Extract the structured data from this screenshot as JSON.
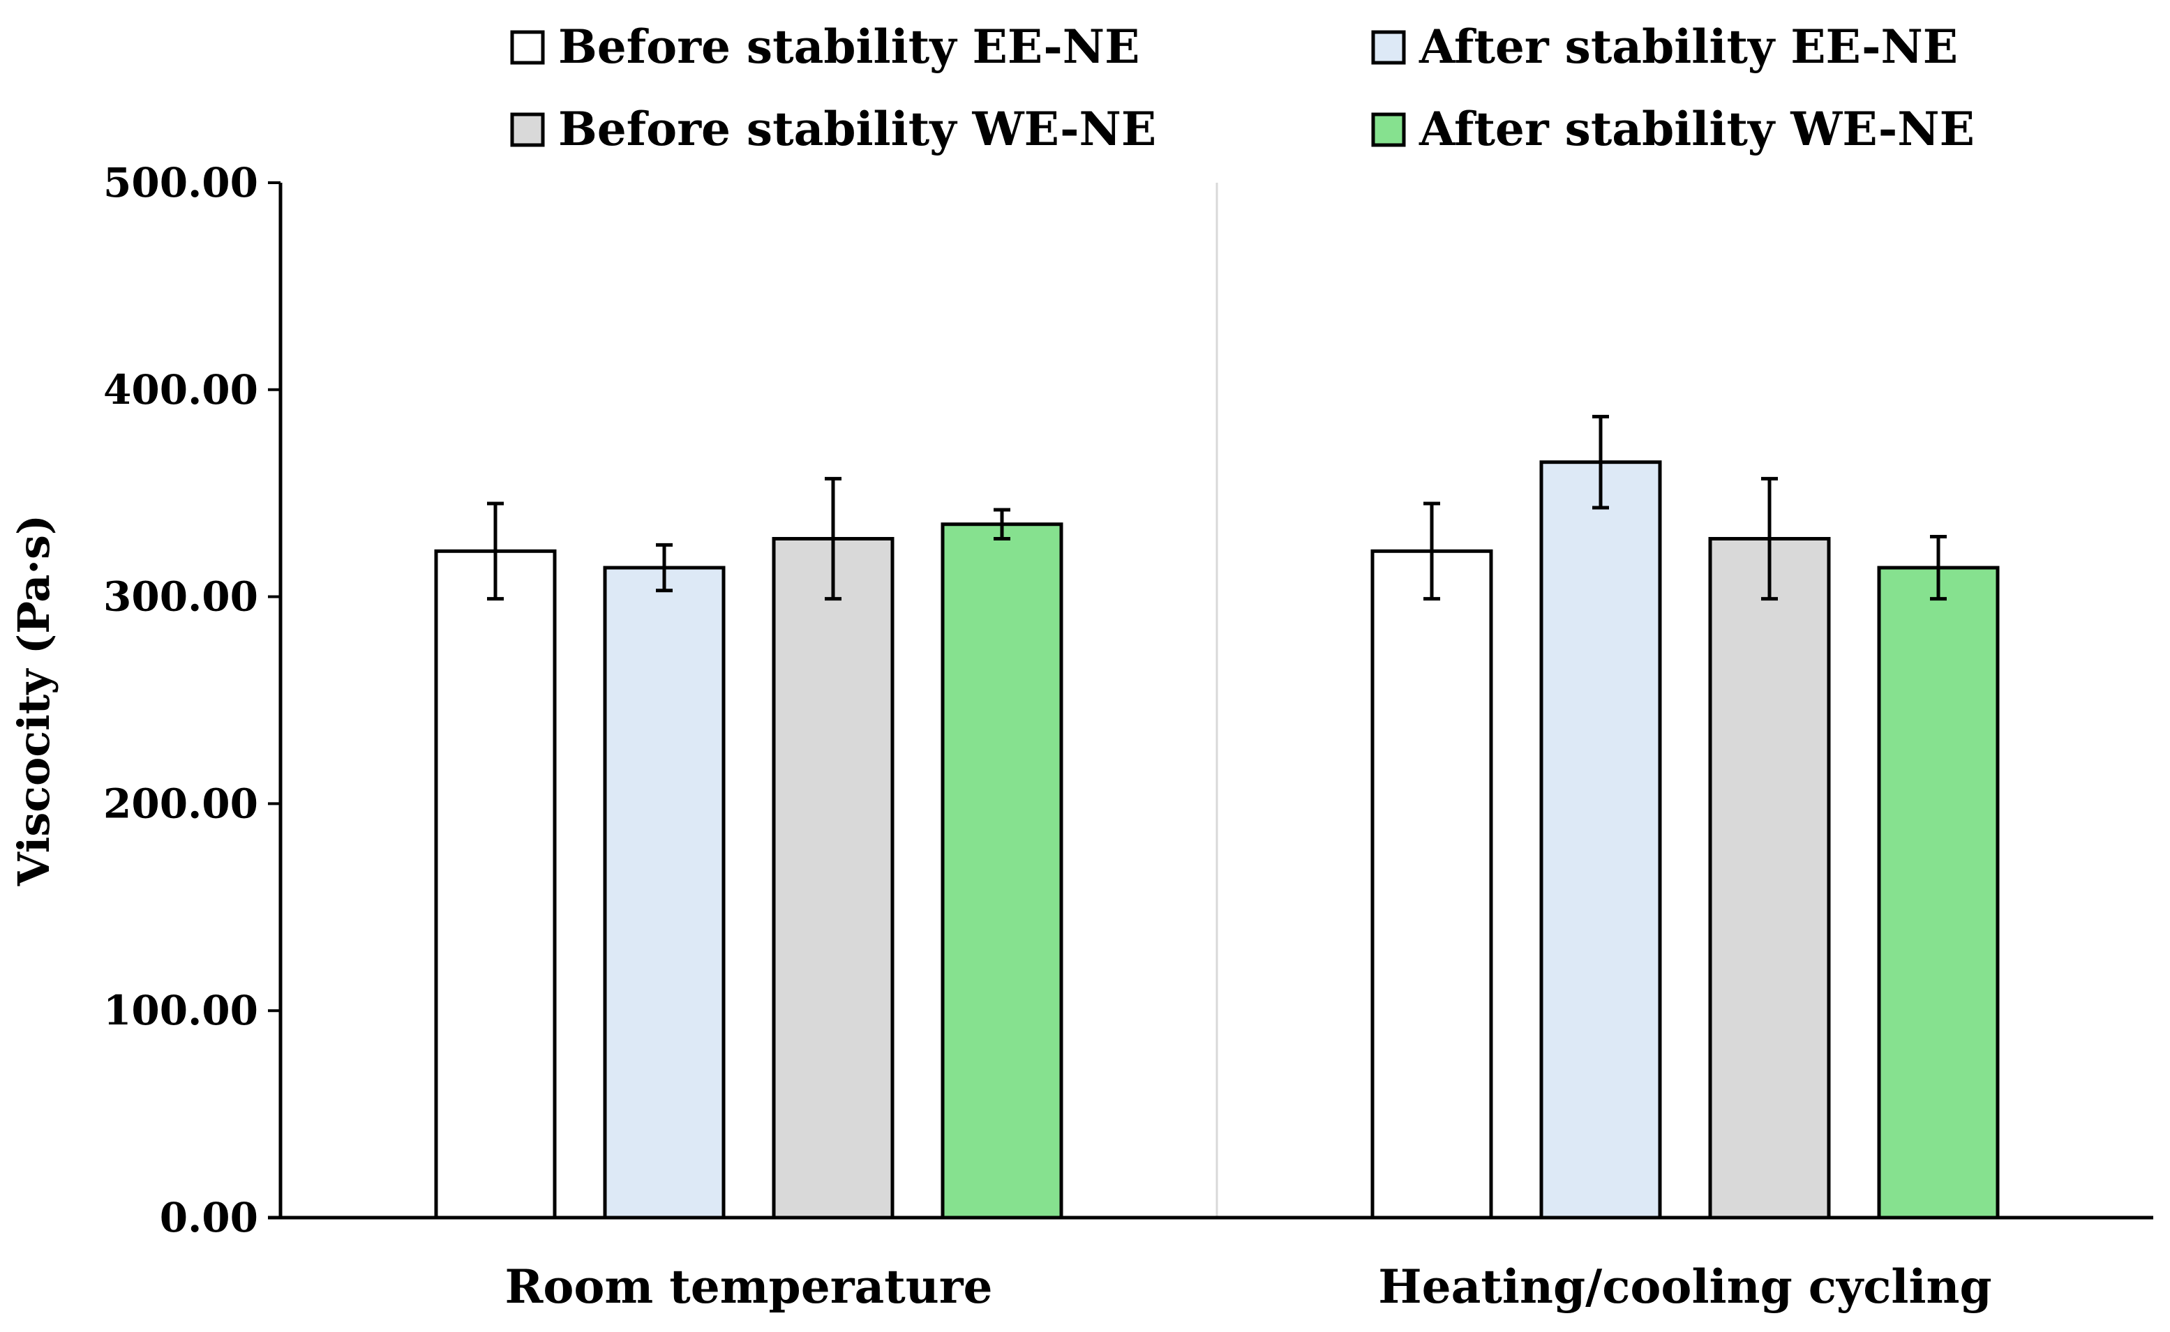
{
  "chart_data": {
    "type": "bar",
    "title": "",
    "xlabel": "",
    "ylabel": "Viscocity (Pa·s)",
    "ylim": [
      0,
      500
    ],
    "yticks": [
      "0.00",
      "100.00",
      "200.00",
      "300.00",
      "400.00",
      "500.00"
    ],
    "categories": [
      "Room temperature",
      "Heating/cooling cycling"
    ],
    "series": [
      {
        "name": "Before stability EE-NE",
        "color": "#ffffff",
        "values": [
          322,
          322
        ],
        "errors": [
          23,
          23
        ]
      },
      {
        "name": "After stability EE-NE",
        "color": "#dde9f6",
        "values": [
          314,
          365
        ],
        "errors": [
          11,
          22
        ]
      },
      {
        "name": "Before stability WE-NE",
        "color": "#d9d9d9",
        "values": [
          328,
          328
        ],
        "errors": [
          29,
          29
        ]
      },
      {
        "name": "After stability WE-NE",
        "color": "#86e18f",
        "values": [
          335,
          314
        ],
        "errors": [
          7,
          15
        ]
      }
    ],
    "legend_position": "top",
    "grid": false
  }
}
